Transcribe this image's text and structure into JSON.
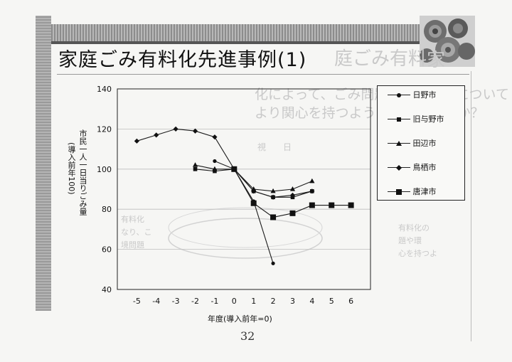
{
  "slide": {
    "title": "家庭ごみ有料化先進事例(1)",
    "page_number": "32"
  },
  "chart_data": {
    "type": "line",
    "xlabel": "年度(導入前年=0)",
    "ylabel": "市民一人一日当りごみ量(導入前年100)",
    "ylabel_main": "市民一人一日当りごみ量",
    "ylabel_sub": "(導入前年100)",
    "x": [
      -5,
      -4,
      -3,
      -2,
      -1,
      0,
      1,
      2,
      3,
      4,
      5,
      6
    ],
    "xlim": [
      -6,
      7
    ],
    "ylim": [
      40,
      140
    ],
    "yticks": [
      40,
      60,
      80,
      100,
      120,
      140
    ],
    "grid": "horizontal",
    "legend_position": "right",
    "series": [
      {
        "name": "日野市",
        "marker": "circle",
        "points": [
          [
            -1,
            104
          ],
          [
            0,
            100
          ],
          [
            1,
            84
          ],
          [
            2,
            53
          ]
        ]
      },
      {
        "name": "旧与野市",
        "marker": "small-square",
        "points": [
          [
            -2,
            100
          ],
          [
            -1,
            99
          ],
          [
            0,
            100
          ],
          [
            1,
            89
          ],
          [
            2,
            86
          ],
          [
            3,
            86
          ],
          [
            4,
            89
          ]
        ]
      },
      {
        "name": "田辺市",
        "marker": "triangle",
        "points": [
          [
            -2,
            102
          ],
          [
            -1,
            100
          ],
          [
            0,
            100
          ],
          [
            1,
            90
          ],
          [
            2,
            89
          ],
          [
            3,
            90
          ],
          [
            4,
            94
          ]
        ]
      },
      {
        "name": "鳥栖市",
        "marker": "diamond",
        "points": [
          [
            -5,
            114
          ],
          [
            -4,
            117
          ],
          [
            -3,
            120
          ],
          [
            -2,
            119
          ],
          [
            -1,
            116
          ],
          [
            0,
            100
          ],
          [
            1,
            89
          ],
          [
            2,
            86
          ],
          [
            3,
            87
          ],
          [
            4,
            89
          ]
        ]
      },
      {
        "name": "唐津市",
        "marker": "big-square",
        "points": [
          [
            0,
            100
          ],
          [
            1,
            83
          ],
          [
            2,
            76
          ],
          [
            3,
            78
          ],
          [
            4,
            82
          ],
          [
            5,
            82
          ],
          [
            6,
            82
          ]
        ]
      }
    ]
  }
}
